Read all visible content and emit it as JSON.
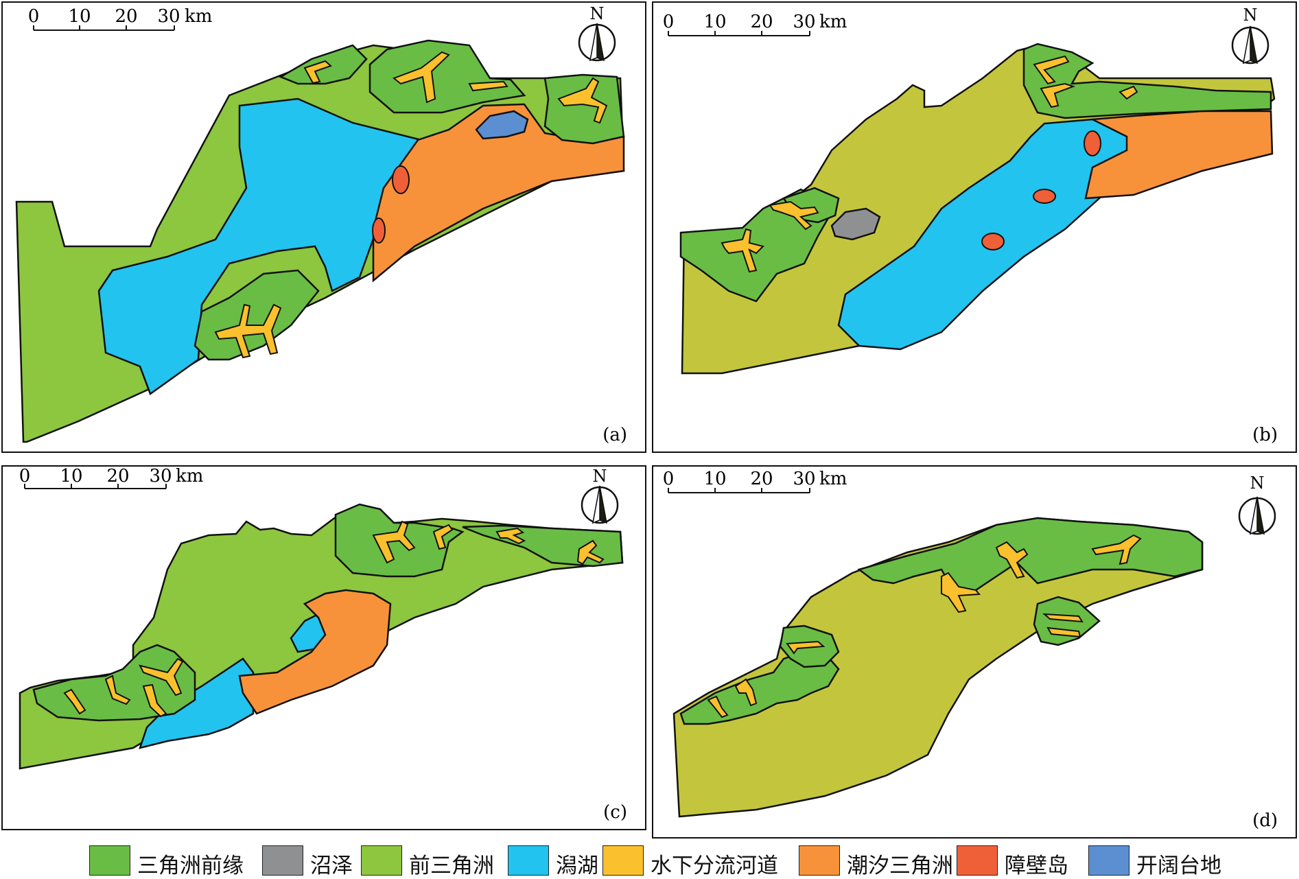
{
  "colors": {
    "delta_front": "#69bd45",
    "swamp": "#8f9092",
    "prodelta": "#8dc63f",
    "lagoon": "#22c3ef",
    "channel": "#fbc02d",
    "tidal_delta": "#f7923a",
    "barrier": "#ef6039",
    "platform": "#5b8fd1",
    "plain": "#c3c63c"
  },
  "scale_bar": {
    "ticks": [
      "0",
      "10",
      "20",
      "30"
    ],
    "unit": "km"
  },
  "north_label": "N",
  "panels": [
    {
      "label": "(a)"
    },
    {
      "label": "(b)"
    },
    {
      "label": "(c)"
    },
    {
      "label": "(d)"
    }
  ],
  "legend": [
    {
      "label": "三角洲前缘",
      "color": "#69bd45"
    },
    {
      "label": "沼泽",
      "color": "#8f9092"
    },
    {
      "label": "前三角洲",
      "color": "#8dc63f"
    },
    {
      "label": "潟湖",
      "color": "#22c3ef"
    },
    {
      "label": "水下分流河道",
      "color": "#fbc02d"
    },
    {
      "label": "潮汐三角洲",
      "color": "#f7923a"
    },
    {
      "label": "障壁岛",
      "color": "#ef6039"
    },
    {
      "label": "开阔台地",
      "color": "#5b8fd1"
    }
  ]
}
